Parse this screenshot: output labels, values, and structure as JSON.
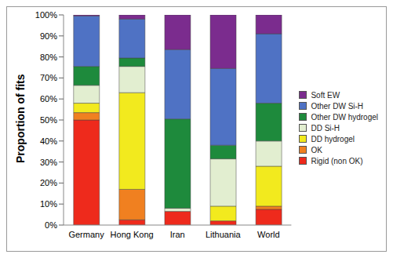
{
  "chart_data": {
    "type": "bar",
    "stacked": true,
    "legend": "right",
    "grid": false,
    "y_label": "Proportion of fits",
    "categories": [
      "Germany",
      "Hong Kong",
      "Iran",
      "Lithuania",
      "World"
    ],
    "ylim": [
      0,
      100
    ],
    "yticks": [
      {
        "value": 0,
        "label": "0%"
      },
      {
        "value": 10,
        "label": "10%"
      },
      {
        "value": 20,
        "label": "20%"
      },
      {
        "value": 30,
        "label": "30%"
      },
      {
        "value": 40,
        "label": "40%"
      },
      {
        "value": 50,
        "label": "50%"
      },
      {
        "value": 60,
        "label": "60%"
      },
      {
        "value": 70,
        "label": "70%"
      },
      {
        "value": 80,
        "label": "80%"
      },
      {
        "value": 90,
        "label": "90%"
      },
      {
        "value": 100,
        "label": "100%"
      }
    ],
    "series": [
      {
        "name": "Rigid (non OK)",
        "color": "#ee2a1c",
        "values": [
          50,
          2.5,
          6.5,
          2,
          7.5
        ]
      },
      {
        "name": "OK",
        "color": "#f08020",
        "values": [
          3.5,
          14.5,
          0,
          0,
          1.5
        ]
      },
      {
        "name": "DD hydrogel",
        "color": "#f2ea1e",
        "values": [
          4.5,
          46,
          0,
          7,
          19
        ]
      },
      {
        "name": "DD Si-H",
        "color": "#e2eed0",
        "values": [
          8.5,
          12.5,
          1.5,
          22.5,
          12
        ]
      },
      {
        "name": "Other DW hydrogel",
        "color": "#1e8a3c",
        "values": [
          9,
          4,
          42.5,
          6.5,
          18
        ]
      },
      {
        "name": "Other DW Si-H",
        "color": "#4f72c4",
        "values": [
          24,
          18.5,
          33,
          36.5,
          33
        ]
      },
      {
        "name": "Soft EW",
        "color": "#7b2c8e",
        "values": [
          0.5,
          2,
          16.5,
          25.5,
          9
        ]
      }
    ]
  }
}
